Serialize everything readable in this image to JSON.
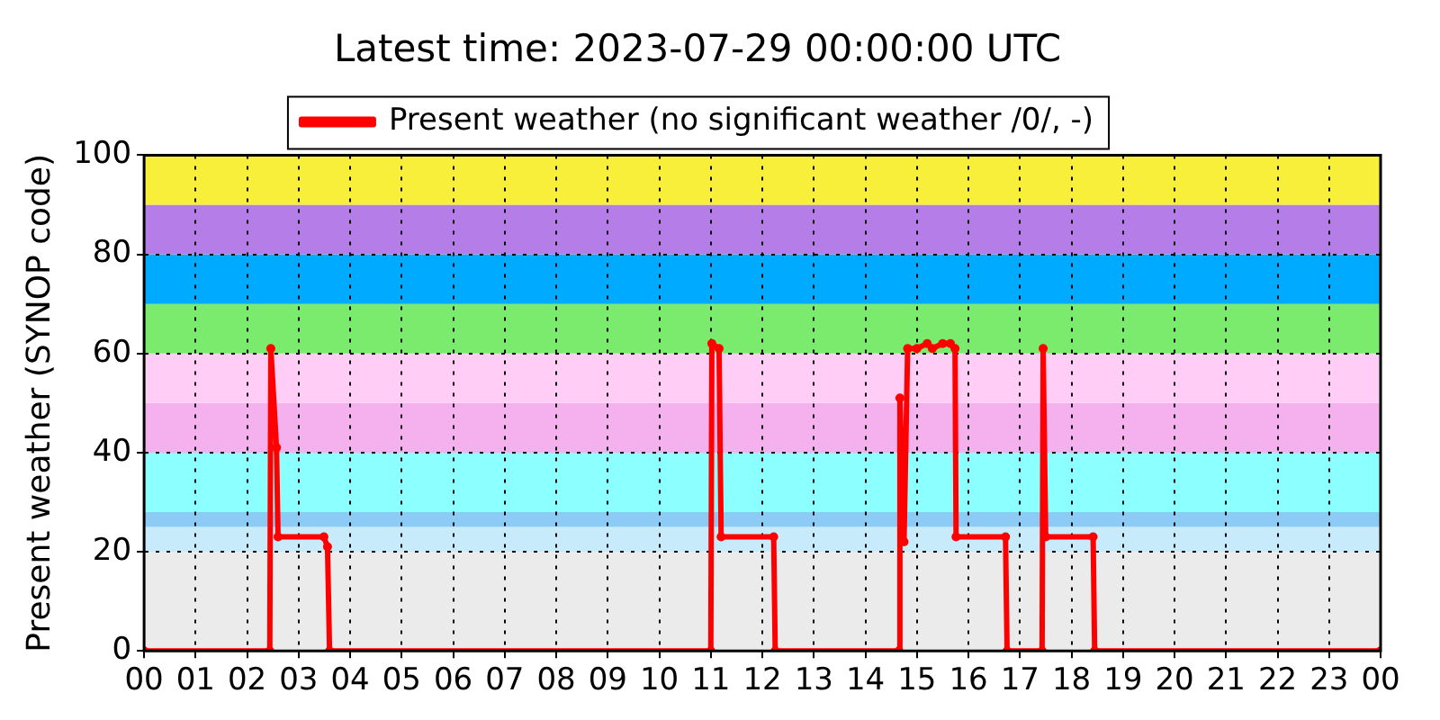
{
  "chart_data": {
    "type": "line",
    "title": "Latest time: 2023-07-29 00:00:00 UTC",
    "ylabel": "Present weather (SYNOP code)",
    "x": [
      0,
      2.44,
      2.46,
      2.57,
      2.6,
      3.49,
      3.56,
      3.6,
      11.0,
      11.02,
      11.16,
      11.2,
      12.22,
      12.25,
      14.65,
      14.67,
      14.75,
      14.82,
      15.0,
      15.2,
      15.3,
      15.5,
      15.65,
      15.74,
      15.76,
      16.72,
      16.75,
      17.43,
      17.45,
      17.5,
      18.42,
      18.45,
      24
    ],
    "series": [
      {
        "name": "Present weather (no significant weather /0/, -)",
        "color": "#ff0000",
        "values": [
          0,
          0,
          61,
          41,
          23,
          23,
          21,
          0,
          0,
          62,
          61,
          23,
          23,
          0,
          0,
          51,
          22,
          61,
          61,
          62,
          61,
          62,
          62,
          61,
          23,
          23,
          0,
          0,
          61,
          23,
          23,
          0,
          0
        ]
      }
    ],
    "marker": "circle",
    "line_style": "solid",
    "xlim": [
      0,
      24
    ],
    "xticks": [
      {
        "value": 0,
        "label": "00"
      },
      {
        "value": 1,
        "label": "01"
      },
      {
        "value": 2,
        "label": "02"
      },
      {
        "value": 3,
        "label": "03"
      },
      {
        "value": 4,
        "label": "04"
      },
      {
        "value": 5,
        "label": "05"
      },
      {
        "value": 6,
        "label": "06"
      },
      {
        "value": 7,
        "label": "07"
      },
      {
        "value": 8,
        "label": "08"
      },
      {
        "value": 9,
        "label": "09"
      },
      {
        "value": 10,
        "label": "10"
      },
      {
        "value": 11,
        "label": "11"
      },
      {
        "value": 12,
        "label": "12"
      },
      {
        "value": 13,
        "label": "13"
      },
      {
        "value": 14,
        "label": "14"
      },
      {
        "value": 15,
        "label": "15"
      },
      {
        "value": 16,
        "label": "16"
      },
      {
        "value": 17,
        "label": "17"
      },
      {
        "value": 18,
        "label": "18"
      },
      {
        "value": 19,
        "label": "19"
      },
      {
        "value": 20,
        "label": "20"
      },
      {
        "value": 21,
        "label": "21"
      },
      {
        "value": 22,
        "label": "22"
      },
      {
        "value": 23,
        "label": "23"
      },
      {
        "value": 24,
        "label": "00"
      }
    ],
    "ylim": [
      0,
      100
    ],
    "yticks": [
      0,
      20,
      40,
      60,
      80,
      100
    ],
    "bands": [
      {
        "axis": "y",
        "from": 0,
        "to": 20,
        "color": "#ebebeb"
      },
      {
        "axis": "y",
        "from": 20,
        "to": 25,
        "color": "#c8ebfb"
      },
      {
        "axis": "y",
        "from": 25,
        "to": 28,
        "color": "#8ccbf5"
      },
      {
        "axis": "y",
        "from": 28,
        "to": 40,
        "color": "#8cffff"
      },
      {
        "axis": "y",
        "from": 40,
        "to": 50,
        "color": "#f5b0ee"
      },
      {
        "axis": "y",
        "from": 50,
        "to": 60,
        "color": "#ffcdf5"
      },
      {
        "axis": "y",
        "from": 60,
        "to": 70,
        "color": "#7beb6e"
      },
      {
        "axis": "y",
        "from": 70,
        "to": 80,
        "color": "#00aaff"
      },
      {
        "axis": "y",
        "from": 80,
        "to": 90,
        "color": "#b57de8"
      },
      {
        "axis": "y",
        "from": 90,
        "to": 100,
        "color": "#f7ef3a"
      }
    ],
    "grid": true,
    "legend": "top"
  }
}
